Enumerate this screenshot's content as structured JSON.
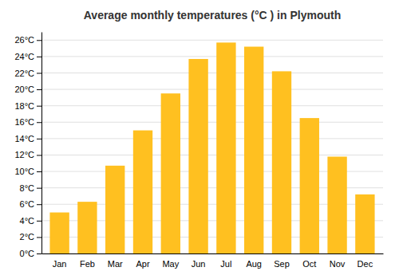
{
  "chart_data": {
    "type": "bar",
    "title": "Average monthly temperatures (°C ) in Plymouth",
    "categories": [
      "Jan",
      "Feb",
      "Mar",
      "Apr",
      "May",
      "Jun",
      "Jul",
      "Aug",
      "Sep",
      "Oct",
      "Nov",
      "Dec"
    ],
    "values": [
      5.0,
      6.3,
      10.7,
      15.0,
      19.5,
      23.7,
      25.7,
      25.2,
      22.2,
      16.5,
      11.8,
      7.2
    ],
    "color": "#FFC020",
    "ylim": [
      0,
      27
    ],
    "yticks": [
      {
        "value": 0,
        "label": "0°C"
      },
      {
        "value": 2,
        "label": "2°C"
      },
      {
        "value": 4,
        "label": "4°C"
      },
      {
        "value": 6,
        "label": "6°C"
      },
      {
        "value": 8,
        "label": "8°C"
      },
      {
        "value": 10,
        "label": "10°C"
      },
      {
        "value": 12,
        "label": "12°C"
      },
      {
        "value": 14,
        "label": "14°C"
      },
      {
        "value": 16,
        "label": "16°C"
      },
      {
        "value": 18,
        "label": "18°C"
      },
      {
        "value": 20,
        "label": "20°C"
      },
      {
        "value": 22,
        "label": "22°C"
      },
      {
        "value": 24,
        "label": "24°C"
      },
      {
        "value": 26,
        "label": "26°C"
      }
    ],
    "grid": true
  }
}
